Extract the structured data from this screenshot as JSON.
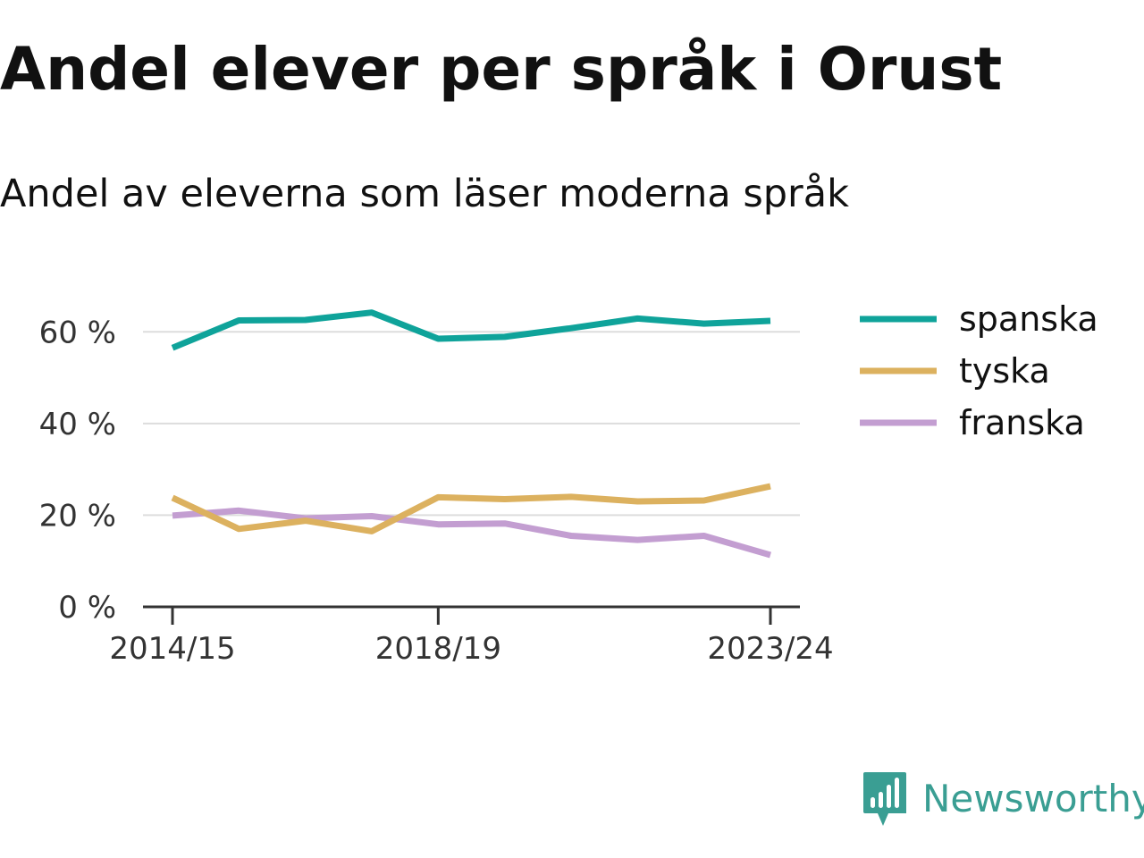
{
  "title": "Andel elever per språk i Orust",
  "subtitle": "Andel av eleverna som läser moderna språk",
  "brand": {
    "name": "Newsworthy",
    "icon": "newsworthy-logo-icon",
    "color": "#3a9e93"
  },
  "chart_data": {
    "type": "line",
    "title": "Andel elever per språk i Orust",
    "subtitle": "Andel av eleverna som läser moderna språk",
    "xlabel": "",
    "ylabel": "",
    "x": [
      "2014/15",
      "2015/16",
      "2016/17",
      "2017/18",
      "2018/19",
      "2019/20",
      "2020/21",
      "2021/22",
      "2022/23",
      "2023/24"
    ],
    "x_ticks": [
      "2014/15",
      "2018/19",
      "2023/24"
    ],
    "y_ticks": [
      0,
      20,
      40,
      60
    ],
    "y_tick_labels": [
      "0 %",
      "20 %",
      "40 %",
      "60 %"
    ],
    "ylim": [
      0,
      70
    ],
    "grid": true,
    "legend_position": "right",
    "series": [
      {
        "name": "spanska",
        "color": "#0fa39a",
        "values": [
          56.5,
          62.5,
          62.6,
          64.2,
          58.5,
          58.9,
          60.8,
          62.9,
          61.8,
          62.4
        ]
      },
      {
        "name": "tyska",
        "color": "#dcb15f",
        "values": [
          23.8,
          17.0,
          18.8,
          16.5,
          23.9,
          23.5,
          24.0,
          23.0,
          23.2,
          26.3
        ]
      },
      {
        "name": "franska",
        "color": "#c39ed1",
        "values": [
          19.9,
          21.0,
          19.3,
          19.8,
          18.0,
          18.2,
          15.5,
          14.6,
          15.5,
          11.3
        ]
      }
    ]
  }
}
